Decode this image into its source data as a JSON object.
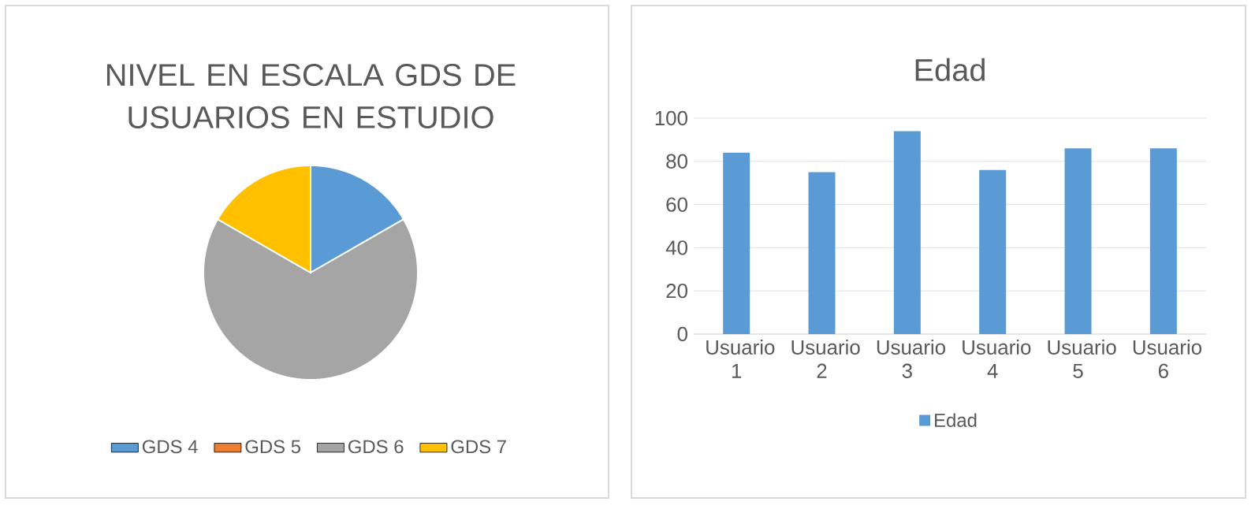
{
  "chart_data": [
    {
      "type": "pie",
      "title": "NIVEL EN ESCALA GDS DE USUARIOS EN ESTUDIO",
      "categories": [
        "GDS 4",
        "GDS 5",
        "GDS 6",
        "GDS 7"
      ],
      "values": [
        16.7,
        0,
        66.6,
        16.7
      ],
      "colors": [
        "#5b9bd5",
        "#ed7d31",
        "#a5a5a5",
        "#ffc000"
      ],
      "legend": "bottom"
    },
    {
      "type": "bar",
      "title": "Edad",
      "categories": [
        "Usuario 1",
        "Usuario 2",
        "Usuario 3",
        "Usuario 4",
        "Usuario 5",
        "Usuario 6"
      ],
      "series": [
        {
          "name": "Edad",
          "color": "#5b9bd5",
          "values": [
            84,
            75,
            94,
            76,
            86,
            86
          ]
        }
      ],
      "ylim": [
        0,
        100
      ],
      "yticks": [
        0,
        20,
        40,
        60,
        80,
        100
      ],
      "grid": "y",
      "legend": "bottom"
    }
  ]
}
